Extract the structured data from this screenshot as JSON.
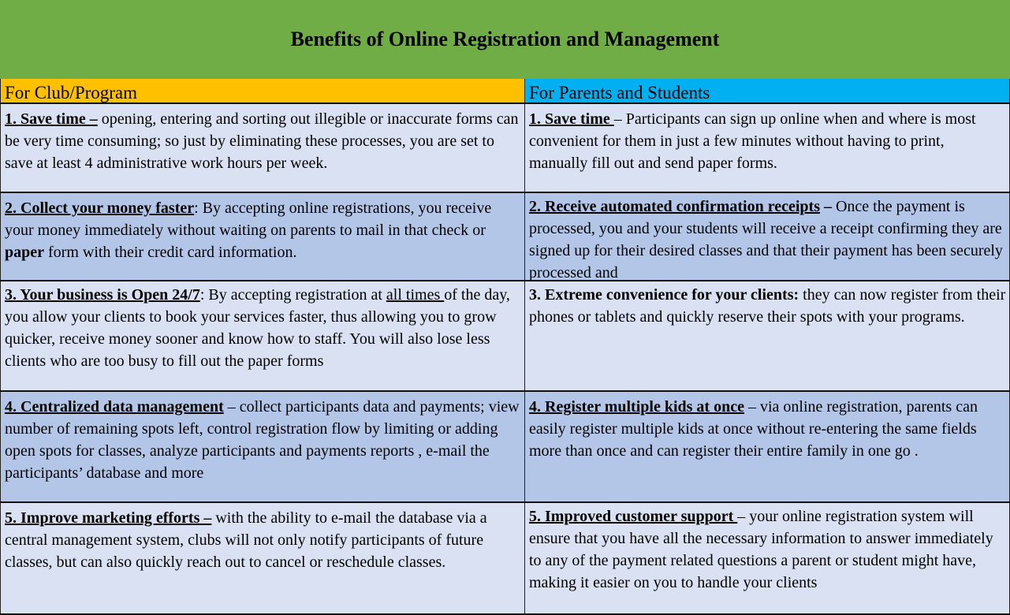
{
  "title": "Benefits of Online Registration and Management",
  "colors": {
    "title_bg": "#70ad47",
    "club_header_bg": "#ffc000",
    "parents_header_bg": "#00b0f0",
    "row_light": "#d9e1f2",
    "row_dark": "#b4c6e7"
  },
  "headers": [
    "For Club/Program",
    "For Parents and Students"
  ],
  "rows": [
    {
      "left": [
        {
          "t": "1. Save time –",
          "b": 1,
          "u": 1
        },
        {
          "t": " opening, entering and sorting out illegible or inaccurate forms can be very time consuming; so just by eliminating these processes, you are set to save at least 4 administrative work hours per week."
        }
      ],
      "right": [
        {
          "t": "1. Save time ",
          "b": 1,
          "u": 1
        },
        {
          "t": "– Participants can sign up online when and where is most convenient for them in just a few minutes without having to print, manually fill out and send paper forms."
        }
      ]
    },
    {
      "left": [
        {
          "t": "2. Collect your money faster",
          "b": 1,
          "u": 1
        },
        {
          "t": ": By accepting online registrations, you receive your money immediately without waiting on parents to mail in that check or "
        },
        {
          "t": "paper",
          "b": 1
        },
        {
          "t": "  form with their credit card information."
        }
      ],
      "right": [
        {
          "t": "2. Receive automated confirmation receipts",
          "b": 1,
          "u": 1
        },
        {
          "t": " – ",
          "b": 1
        },
        {
          "t": "Once the payment is processed, you and your students will  receive a receipt confirming they are signed up for their desired classes and that their payment has been securely processed and"
        }
      ]
    },
    {
      "left": [
        {
          "t": "3. Your business is Open 24/7",
          "b": 1,
          "u": 1
        },
        {
          "t": ": By accepting registration at "
        },
        {
          "t": "all times ",
          "u": 1
        },
        {
          "t": " of the day, you allow your clients to book your services faster, thus allowing you to  grow quicker, receive money  sooner and know how to staff. You will also lose less clients who are too busy to fill out the paper forms"
        }
      ],
      "right": [
        {
          "t": "3. Extreme convenience for your clients:",
          "b": 1
        },
        {
          "t": " they can now register from their phones or tablets and quickly reserve their spots with your programs."
        }
      ]
    },
    {
      "left": [
        {
          "t": "4. Centralized data management",
          "b": 1,
          "u": 1
        },
        {
          "t": " – collect participants data and payments; view number of remaining spots left,  control registration flow by limiting or adding open spots for classes, analyze participants and payments reports , e-mail the participants’ database and more"
        }
      ],
      "right": [
        {
          "t": "4. Register multiple kids at once",
          "b": 1,
          "u": 1
        },
        {
          "t": " – via online registration, parents can easily register multiple kids at once without re-entering the same fields more than once and can register their entire family in one go ."
        }
      ]
    },
    {
      "left": [
        {
          "t": "5. Improve marketing efforts –",
          "b": 1,
          "u": 1
        },
        {
          "t": " with the ability to e-mail the database via a central management system, clubs will not only notify participants of future classes, but can also quickly reach out to cancel or reschedule classes."
        }
      ],
      "right": [
        {
          "t": "5. Improved customer support ",
          "b": 1,
          "u": 1
        },
        {
          "t": "– your online registration system will ensure that you have all the necessary information to answer immediately to any of the payment related questions a parent or student might have, making it easier on you to handle your clients"
        }
      ]
    }
  ]
}
